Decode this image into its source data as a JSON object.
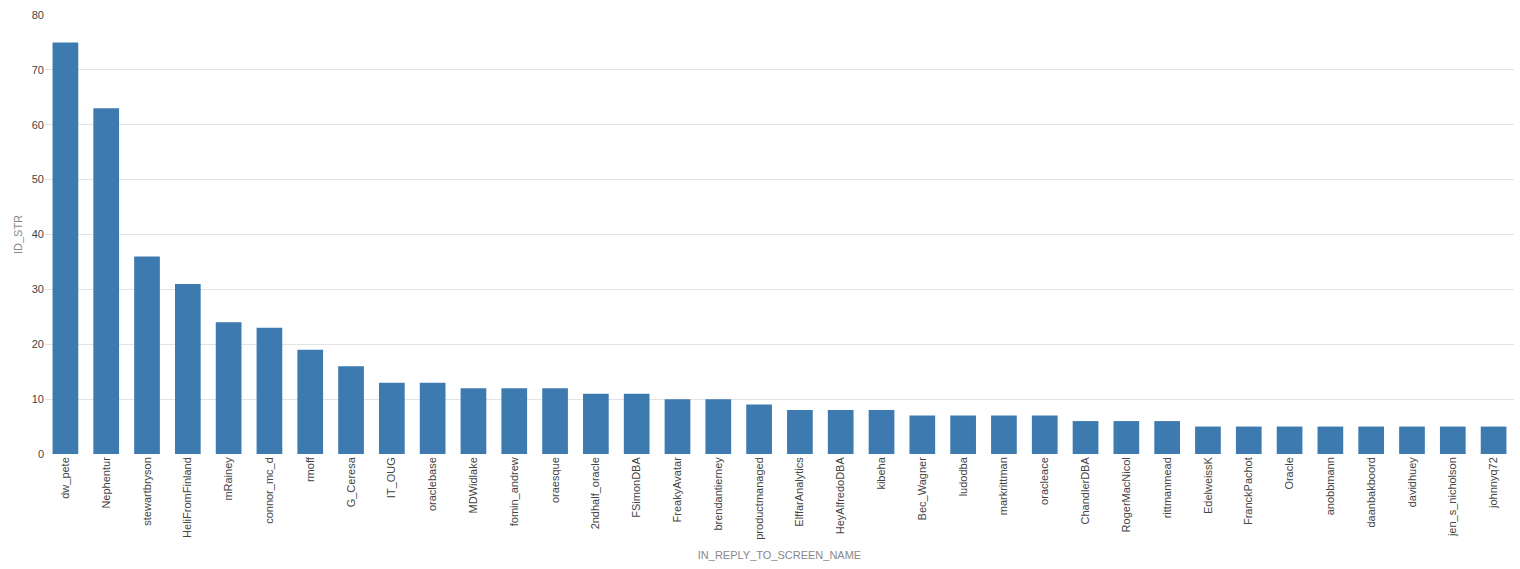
{
  "chart_data": {
    "type": "bar",
    "x_label": "IN_REPLY_TO_SCREEN_NAME",
    "y_label": "ID_STR",
    "categories": [
      "dw_pete",
      "Nephentur",
      "stewartbryson",
      "HeliFromFinland",
      "mRainey",
      "connor_mc_d",
      "rmoff",
      "G_Ceresa",
      "IT_OUG",
      "oraclebase",
      "MDWidlake",
      "fomin_andrew",
      "oraesque",
      "2ndhalf_oracle",
      "FSimonDBA",
      "FreakyAvatar",
      "brendantierney",
      "productmanaged",
      "ElffarAnalytics",
      "HeyAlfredoDBA",
      "kibeha",
      "Bec_Wagner",
      "ludodba",
      "markrittman",
      "oracleace",
      "ChandlerDBA",
      "RogerMacNicol",
      "rittmanmead",
      "EdelweissK",
      "FranckPachot",
      "Oracle",
      "anobbmann",
      "daanbakboord",
      "davidhuey",
      "jen_s_nicholson",
      "johnnyq72"
    ],
    "values": [
      75,
      63,
      36,
      31,
      24,
      23,
      19,
      16,
      13,
      13,
      12,
      12,
      12,
      11,
      11,
      10,
      10,
      9,
      8,
      8,
      8,
      7,
      7,
      7,
      7,
      6,
      6,
      6,
      5,
      5,
      5,
      5,
      5,
      5,
      5,
      5
    ],
    "color": "#3d7ab0",
    "ylim": [
      0,
      80
    ],
    "yticks": [
      0,
      10,
      20,
      30,
      40,
      50,
      60,
      70,
      80
    ],
    "grid": true
  }
}
